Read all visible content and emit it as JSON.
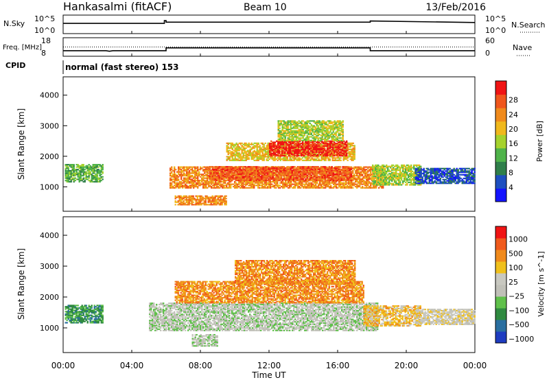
{
  "header": {
    "title": "Hankasalmi (fitACF)",
    "beam": "Beam 10",
    "date": "13/Feb/2016",
    "cpid_label": "CPID",
    "cpid_value": "normal (fast stereo) 153"
  },
  "chart_data": [
    {
      "type": "line",
      "panel": "noise",
      "ylabel_left": "N.Sky",
      "ylabel_right": "N.Search",
      "left_ticks": [
        "10^5",
        "10^0"
      ],
      "right_ticks": [
        "10^5",
        "10^0"
      ],
      "series": [
        {
          "style": "solid",
          "x": [
            0,
            5.9,
            5.9,
            6.0,
            6.0,
            17.9,
            17.9,
            24
          ],
          "y": [
            0.55,
            0.55,
            0.7,
            0.7,
            0.62,
            0.62,
            0.68,
            0.6
          ]
        }
      ]
    },
    {
      "type": "line",
      "panel": "frequency",
      "ylabel_left": "Freq. [MHz]",
      "ylabel_right": "Nave",
      "left_ticks": [
        "18",
        "8"
      ],
      "right_ticks": [
        "60",
        "0"
      ],
      "series": [
        {
          "style": "solid",
          "x": [
            0,
            2.5,
            2.7,
            2.9,
            6.0,
            6.0,
            17.9,
            17.9,
            24
          ],
          "y": [
            11,
            11,
            10.7,
            11,
            11,
            12.5,
            12.5,
            11,
            11
          ]
        },
        {
          "style": "dotted",
          "x": [
            0,
            24
          ],
          "y": [
            13,
            13
          ]
        }
      ]
    },
    {
      "type": "heatmap",
      "panel": "power",
      "ylabel": "Slant Range [km]",
      "yticks": [
        "1000",
        "2000",
        "3000",
        "4000"
      ],
      "ylim": [
        200,
        4600
      ],
      "xlim": [
        0,
        24
      ],
      "colorbar_label": "Power [dB]",
      "colorbar_ticks": [
        "4",
        "8",
        "12",
        "16",
        "20",
        "24",
        "28"
      ],
      "colorbar_colors": [
        "#1414ff",
        "#1e4fc0",
        "#2f7f4a",
        "#4fb34a",
        "#a5d22d",
        "#f0b81c",
        "#f08a1c",
        "#f0561c",
        "#f01414"
      ],
      "regions": [
        {
          "t0": 0.1,
          "t1": 2.3,
          "r0": 1150,
          "r1": 1750,
          "level": 3
        },
        {
          "t0": 6.2,
          "t1": 18.6,
          "r0": 950,
          "r1": 1650,
          "level": 6
        },
        {
          "t0": 8.5,
          "t1": 16.8,
          "r0": 1200,
          "r1": 1650,
          "level": 7
        },
        {
          "t0": 9.5,
          "t1": 17.0,
          "r0": 1850,
          "r1": 2450,
          "level": 5
        },
        {
          "t0": 12.0,
          "t1": 16.5,
          "r0": 2000,
          "r1": 2500,
          "level": 8
        },
        {
          "t0": 12.5,
          "t1": 16.3,
          "r0": 2500,
          "r1": 3150,
          "level": 4
        },
        {
          "t0": 18.0,
          "t1": 20.8,
          "r0": 1050,
          "r1": 1700,
          "level": 4
        },
        {
          "t0": 20.5,
          "t1": 24.0,
          "r0": 1100,
          "r1": 1600,
          "level": 1
        },
        {
          "t0": 6.5,
          "t1": 9.5,
          "r0": 400,
          "r1": 700,
          "level": 6
        }
      ]
    },
    {
      "type": "heatmap",
      "panel": "velocity",
      "ylabel": "Slant Range [km]",
      "yticks": [
        "1000",
        "2000",
        "3000",
        "4000"
      ],
      "ylim": [
        200,
        4600
      ],
      "xlim": [
        0,
        24
      ],
      "colorbar_label": "Velocity [m s^-1]",
      "colorbar_ticks": [
        "1000",
        "500",
        "100",
        "25",
        "−25",
        "−100",
        "−500",
        "−1000"
      ],
      "colorbar_colors": [
        "#1e3cc0",
        "#2a6fa0",
        "#2f8a40",
        "#5fc04a",
        "#c0c0b8",
        "#c8c8c0",
        "#f0c01c",
        "#f08a1c",
        "#f05a1c",
        "#f01414"
      ],
      "regions": [
        {
          "t0": 0.1,
          "t1": 2.3,
          "r0": 1150,
          "r1": 1750,
          "level": 2
        },
        {
          "t0": 5.0,
          "t1": 18.3,
          "r0": 900,
          "r1": 1800,
          "level": 4
        },
        {
          "t0": 6.5,
          "t1": 17.5,
          "r0": 1800,
          "r1": 2500,
          "level": 7
        },
        {
          "t0": 10.0,
          "t1": 17.0,
          "r0": 2400,
          "r1": 3200,
          "level": 7
        },
        {
          "t0": 17.5,
          "t1": 20.8,
          "r0": 1050,
          "r1": 1700,
          "level": 6
        },
        {
          "t0": 20.5,
          "t1": 24.0,
          "r0": 1100,
          "r1": 1600,
          "level": 5
        },
        {
          "t0": 7.5,
          "t1": 9.0,
          "r0": 400,
          "r1": 800,
          "level": 4
        }
      ]
    }
  ],
  "xaxis": {
    "label": "Time UT",
    "ticks": [
      "00:00",
      "04:00",
      "08:00",
      "12:00",
      "16:00",
      "20:00",
      "00:00"
    ]
  }
}
